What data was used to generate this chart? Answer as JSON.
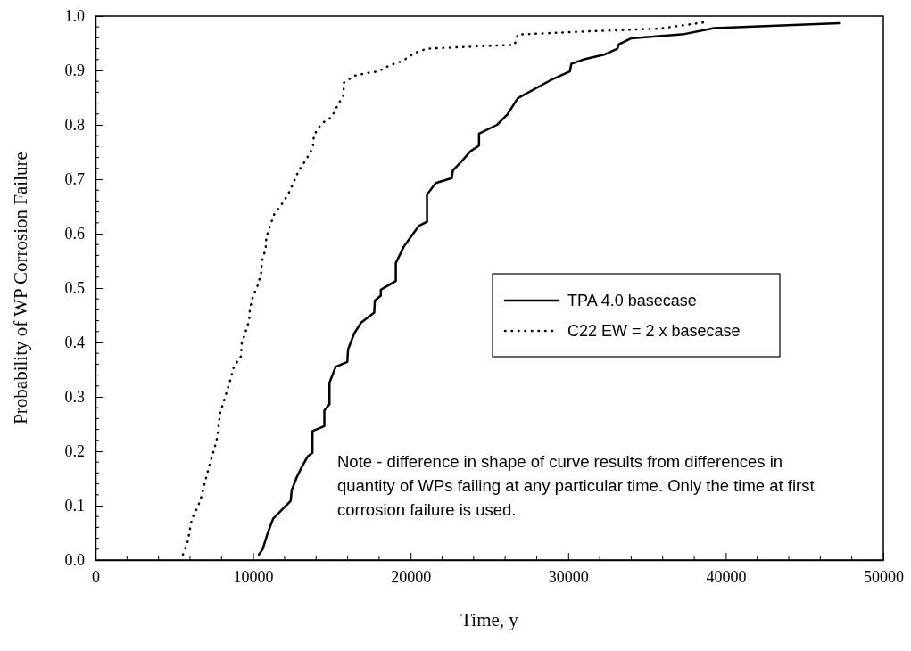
{
  "chart_data": {
    "type": "line",
    "xlabel": "Time, y",
    "ylabel": "Probability of WP Corrosion Failure",
    "xlim": [
      0,
      50000
    ],
    "xticks": [
      0,
      10000,
      20000,
      30000,
      40000,
      50000
    ],
    "ylim": [
      0,
      1
    ],
    "yticks": [
      {
        "value": 0,
        "label": "0.0"
      },
      {
        "value": 0.1,
        "label": "0.1"
      },
      {
        "value": 0.2,
        "label": "0.2"
      },
      {
        "value": 0.3,
        "label": "0.3"
      },
      {
        "value": 0.4,
        "label": "0.4"
      },
      {
        "value": 0.5,
        "label": "0.5"
      },
      {
        "value": 0.6,
        "label": "0.6"
      },
      {
        "value": 0.7,
        "label": "0.7"
      },
      {
        "value": 0.8,
        "label": "0.8"
      },
      {
        "value": 0.9,
        "label": "0.9"
      },
      {
        "value": 1,
        "label": "1.0"
      }
    ],
    "grid": false,
    "legend": "right",
    "marker": "none",
    "series": [
      {
        "name": "TPA 4.0 basecase",
        "color": "#000000",
        "line_style": "solid",
        "x": [
          10370,
          10610,
          10935,
          11275,
          12390,
          12450,
          12770,
          13110,
          13485,
          13770,
          13770,
          14525,
          14525,
          14850,
          14850,
          15240,
          15980,
          16030,
          16410,
          16840,
          17690,
          17730,
          18110,
          18110,
          19060,
          19060,
          19565,
          20040,
          20510,
          21040,
          21040,
          21600,
          22610,
          22680,
          23210,
          23780,
          24340,
          24340,
          25480,
          26140,
          26800,
          28880,
          30100,
          30200,
          30950,
          32270,
          33120,
          33220,
          33980,
          37380,
          39260,
          47190
        ],
        "values": [
          0.01,
          0.02,
          0.05,
          0.076,
          0.109,
          0.128,
          0.152,
          0.172,
          0.191,
          0.197,
          0.237,
          0.246,
          0.275,
          0.286,
          0.326,
          0.355,
          0.364,
          0.387,
          0.416,
          0.436,
          0.455,
          0.477,
          0.486,
          0.497,
          0.513,
          0.546,
          0.576,
          0.595,
          0.614,
          0.622,
          0.672,
          0.693,
          0.702,
          0.716,
          0.732,
          0.751,
          0.762,
          0.784,
          0.8,
          0.819,
          0.849,
          0.882,
          0.898,
          0.912,
          0.92,
          0.929,
          0.94,
          0.948,
          0.959,
          0.967,
          0.978,
          0.987
        ]
      },
      {
        "name": "C22 EW = 2 x basecase",
        "color": "#000000",
        "line_style": "dotted",
        "x": [
          5550,
          5840,
          6120,
          6500,
          6740,
          6930,
          7120,
          7310,
          7540,
          7730,
          7910,
          8350,
          8580,
          8780,
          9240,
          9270,
          9520,
          9750,
          9800,
          9990,
          10310,
          10520,
          10560,
          10800,
          10840,
          11090,
          11350,
          11840,
          12220,
          12560,
          12880,
          13390,
          13800,
          13860,
          14330,
          14990,
          15370,
          15750,
          15750,
          16410,
          17170,
          17920,
          18710,
          19470,
          20240,
          21040,
          22550,
          24060,
          25570,
          26600,
          26800,
          31330,
          35770,
          38790
        ],
        "values": [
          0.01,
          0.032,
          0.076,
          0.098,
          0.118,
          0.141,
          0.162,
          0.182,
          0.204,
          0.226,
          0.27,
          0.311,
          0.333,
          0.355,
          0.375,
          0.397,
          0.419,
          0.44,
          0.462,
          0.484,
          0.506,
          0.528,
          0.549,
          0.572,
          0.593,
          0.615,
          0.636,
          0.655,
          0.672,
          0.693,
          0.715,
          0.737,
          0.759,
          0.781,
          0.802,
          0.814,
          0.836,
          0.855,
          0.877,
          0.89,
          0.895,
          0.898,
          0.91,
          0.917,
          0.932,
          0.94,
          0.942,
          0.944,
          0.946,
          0.947,
          0.966,
          0.972,
          0.977,
          0.989
        ]
      }
    ],
    "annotations": [
      "Note - difference in shape of curve results from differences in quantity of WPs failing at any particular time. Only the time at first corrosion failure is used."
    ]
  }
}
